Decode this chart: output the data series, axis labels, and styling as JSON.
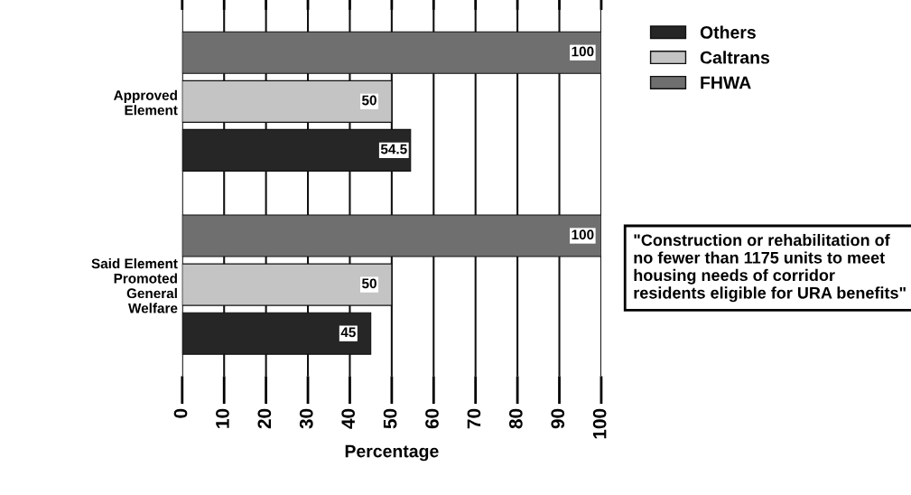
{
  "chart_data": {
    "type": "bar",
    "orientation": "horizontal",
    "categories": [
      "Approved\nElement",
      "Said Element\nPromoted\nGeneral\nWelfare"
    ],
    "series": [
      {
        "name": "FHWA",
        "color": "#6f6f6f",
        "values": [
          100,
          100
        ]
      },
      {
        "name": "Caltrans",
        "color": "#c4c4c4",
        "values": [
          50,
          50
        ]
      },
      {
        "name": "Others",
        "color": "#262626",
        "values": [
          54.5,
          45
        ]
      }
    ],
    "xlabel": "Percentage",
    "xlim": [
      0,
      100
    ],
    "xticks": [
      0,
      10,
      20,
      30,
      40,
      50,
      60,
      70,
      80,
      90,
      100
    ],
    "grid": "x",
    "legend": "top right",
    "data_labels": true,
    "annotations": [
      "\"Construction or rehabilitation of no fewer than 1175 units to meet housing needs of corridor residents eligible for URA benefits\""
    ]
  }
}
